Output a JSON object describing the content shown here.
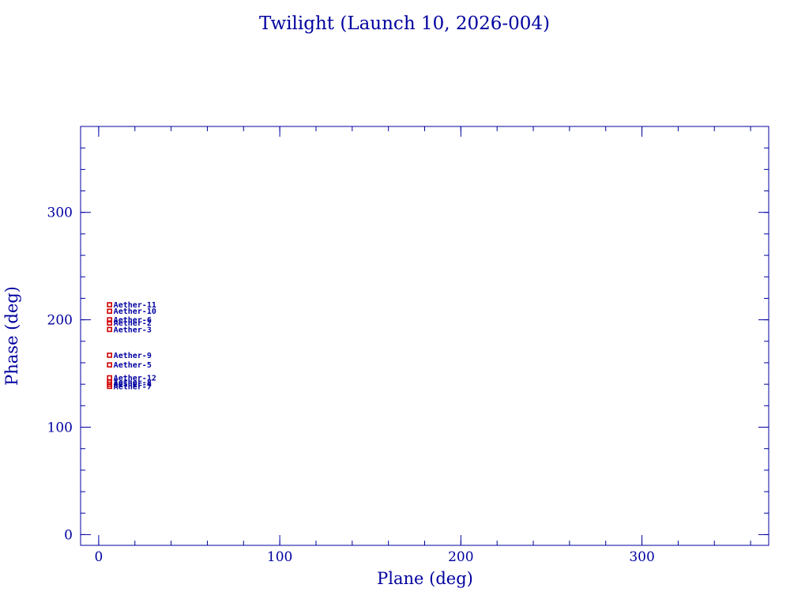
{
  "title": "Twilight (Launch 10, 2026-004)",
  "colors": {
    "axis": "#0000a0",
    "marker": "#d00000",
    "background": "#ffffff"
  },
  "chart_data": {
    "type": "scatter",
    "title": "Twilight (Launch 10, 2026-004)",
    "xlabel": "Plane (deg)",
    "ylabel": "Phase (deg)",
    "xlim": [
      -10,
      370
    ],
    "ylim": [
      -10,
      380
    ],
    "xticks": [
      0,
      100,
      200,
      300
    ],
    "yticks": [
      0,
      100,
      200,
      300
    ],
    "xtick_labels": [
      "0",
      "100",
      "200",
      "300"
    ],
    "ytick_labels": [
      "0",
      "100",
      "200",
      "300"
    ],
    "grid": false,
    "points": [
      {
        "label": "Aether-11",
        "x": 6,
        "y": 214
      },
      {
        "label": "Aether-10",
        "x": 6,
        "y": 208
      },
      {
        "label": "Aether-6",
        "x": 6,
        "y": 200
      },
      {
        "label": "Aether-2",
        "x": 6,
        "y": 197
      },
      {
        "label": "Aether-3",
        "x": 6,
        "y": 191
      },
      {
        "label": "Aether-9",
        "x": 6,
        "y": 167
      },
      {
        "label": "Aether-5",
        "x": 6,
        "y": 158
      },
      {
        "label": "Aether-12",
        "x": 6,
        "y": 146
      },
      {
        "label": "Aether-8",
        "x": 6,
        "y": 142
      },
      {
        "label": "Aether-4",
        "x": 6,
        "y": 140
      },
      {
        "label": "Aether-7",
        "x": 6,
        "y": 138
      }
    ]
  }
}
